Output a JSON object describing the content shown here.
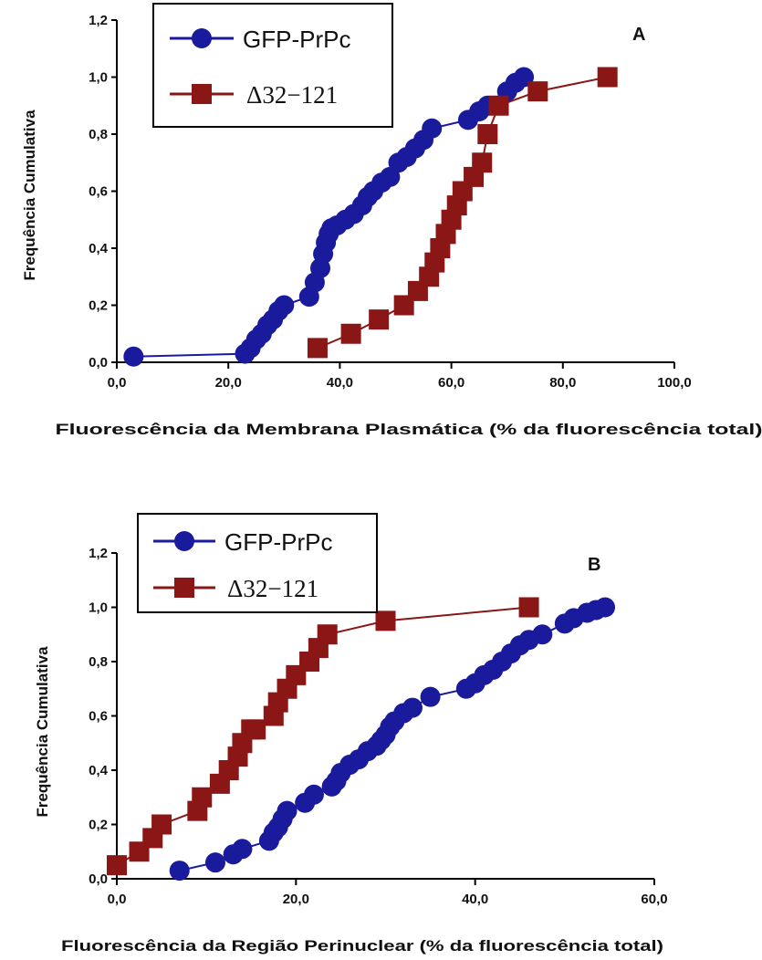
{
  "colors": {
    "blue": "#1a1a9c",
    "red": "#8b1616",
    "axis": "#000000"
  },
  "chart_data": [
    {
      "type": "line",
      "panel_label": "A",
      "xlabel": "Fluorescência da Membrana Plasmática (% da fluorescência total)",
      "ylabel": "Frequência Cumulativa",
      "xlim": [
        0,
        100
      ],
      "ylim": [
        0,
        1.2
      ],
      "xticks": [
        "0,0",
        "20,0",
        "40,0",
        "60,0",
        "80,0",
        "100,0"
      ],
      "yticks": [
        "0,0",
        "0,2",
        "0,4",
        "0,6",
        "0,8",
        "1,0",
        "1,2"
      ],
      "legend": [
        "GFP-PrPc",
        "Δ32−121"
      ],
      "series": [
        {
          "name": "GFP-PrPc",
          "marker": "circle",
          "x": [
            3.0,
            23.0,
            24.0,
            25.0,
            26.0,
            27.0,
            28.0,
            29.0,
            30.0,
            34.5,
            35.5,
            36.5,
            37.0,
            37.5,
            38.0,
            38.5,
            39.5,
            41.0,
            42.5,
            44.0,
            45.0,
            46.0,
            47.5,
            49.0,
            50.5,
            52.0,
            53.5,
            55.0,
            56.5,
            63.0,
            65.0,
            66.5,
            70.0,
            71.5,
            73.0
          ],
          "y": [
            0.02,
            0.03,
            0.05,
            0.08,
            0.1,
            0.13,
            0.15,
            0.18,
            0.2,
            0.23,
            0.28,
            0.33,
            0.38,
            0.42,
            0.45,
            0.47,
            0.48,
            0.5,
            0.52,
            0.55,
            0.58,
            0.6,
            0.63,
            0.65,
            0.7,
            0.72,
            0.75,
            0.78,
            0.82,
            0.85,
            0.88,
            0.9,
            0.95,
            0.98,
            1.0
          ]
        },
        {
          "name": "Δ32−121",
          "marker": "square",
          "x": [
            36.0,
            42.0,
            47.0,
            51.5,
            54.0,
            56.0,
            57.0,
            58.0,
            59.0,
            60.0,
            61.0,
            62.0,
            64.0,
            65.5,
            66.5,
            68.5,
            75.5,
            88.0
          ],
          "y": [
            0.05,
            0.1,
            0.15,
            0.2,
            0.25,
            0.3,
            0.35,
            0.4,
            0.45,
            0.5,
            0.55,
            0.6,
            0.65,
            0.7,
            0.8,
            0.9,
            0.95,
            1.0
          ]
        }
      ]
    },
    {
      "type": "line",
      "panel_label": "B",
      "xlabel": "Fluorescência da Região Perinuclear (% da fluorescência total)",
      "ylabel": "Frequência Cumulativa",
      "xlim": [
        0,
        60
      ],
      "ylim": [
        0,
        1.2
      ],
      "xticks": [
        "0,0",
        "20,0",
        "40,0",
        "60,0"
      ],
      "yticks": [
        "0,0",
        "0,2",
        "0,4",
        "0,6",
        "0,8",
        "1,0",
        "1,2"
      ],
      "legend": [
        "GFP-PrPc",
        "Δ32−121"
      ],
      "series": [
        {
          "name": "GFP-PrPc",
          "marker": "circle",
          "x": [
            7.0,
            11.0,
            13.0,
            14.0,
            17.0,
            17.5,
            18.0,
            18.5,
            19.0,
            21.0,
            22.0,
            24.0,
            24.5,
            25.0,
            26.0,
            27.0,
            28.0,
            29.0,
            29.5,
            30.0,
            30.5,
            31.0,
            32.0,
            33.0,
            35.0,
            39.0,
            40.0,
            41.0,
            42.0,
            43.0,
            44.0,
            45.0,
            46.0,
            47.5,
            50.0,
            51.0,
            52.5,
            53.5,
            54.5
          ],
          "y": [
            0.03,
            0.06,
            0.09,
            0.11,
            0.14,
            0.17,
            0.19,
            0.22,
            0.25,
            0.28,
            0.31,
            0.34,
            0.36,
            0.39,
            0.42,
            0.44,
            0.47,
            0.49,
            0.51,
            0.53,
            0.56,
            0.58,
            0.61,
            0.63,
            0.67,
            0.7,
            0.72,
            0.75,
            0.77,
            0.8,
            0.83,
            0.86,
            0.88,
            0.9,
            0.94,
            0.96,
            0.98,
            0.99,
            1.0
          ]
        },
        {
          "name": "Δ32−121",
          "marker": "square",
          "x": [
            0.0,
            2.5,
            4.0,
            5.0,
            9.0,
            9.5,
            11.5,
            12.5,
            13.5,
            14.0,
            15.0,
            15.5,
            17.5,
            18.0,
            19.0,
            20.0,
            21.5,
            22.5,
            23.5,
            30.0,
            46.0
          ],
          "y": [
            0.05,
            0.1,
            0.15,
            0.2,
            0.25,
            0.3,
            0.35,
            0.4,
            0.45,
            0.5,
            0.55,
            0.55,
            0.6,
            0.65,
            0.7,
            0.75,
            0.8,
            0.85,
            0.9,
            0.95,
            1.0
          ]
        }
      ]
    }
  ]
}
